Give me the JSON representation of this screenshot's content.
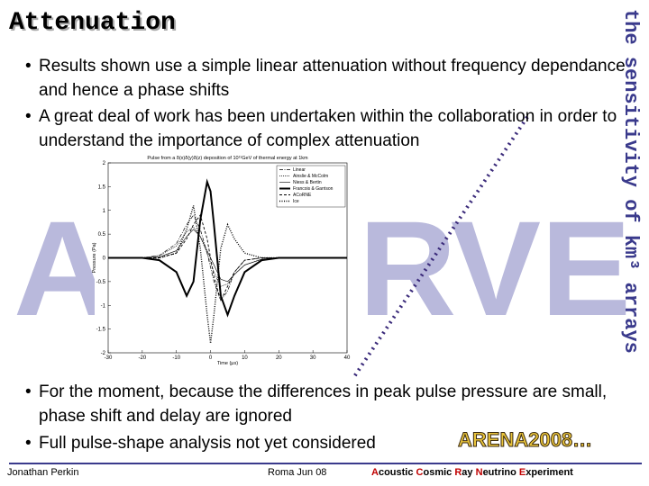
{
  "header": {
    "title": "Attenuation",
    "side_text": "the sensitivity of km³ arrays"
  },
  "watermark": [
    "A",
    "R",
    "V",
    "E"
  ],
  "bullets_top": [
    "Results shown use a simple linear attenuation without frequency dependance and hence a phase shifts",
    "A great deal of work has been undertaken within the collaboration in order to understand the importance of complex attenuation"
  ],
  "bullets_bottom": [
    "For the moment, because the differences in peak pulse pressure are small, phase shift and delay are ignored",
    "Full pulse-shape analysis not yet considered"
  ],
  "logo": "ARENA2008…",
  "footer": {
    "author": "Jonathan Perkin",
    "venue": "Roma Jun 08",
    "experiment": [
      {
        "initial": "A",
        "rest": "coustic"
      },
      {
        "initial": "C",
        "rest": "osmic"
      },
      {
        "initial": "R",
        "rest": "ay"
      },
      {
        "initial": "N",
        "rest": "eutrino"
      },
      {
        "initial": "E",
        "rest": "xperiment"
      }
    ]
  },
  "chart_data": {
    "type": "line",
    "title": "Pulse from a δ(x)δ(y)δ(z) deposition of 10¹¹GeV of thermal energy at 1km",
    "x_label": "Time (μs)",
    "y_label": "Pressure (Pa)",
    "x": [
      -30,
      -20,
      -15,
      -10,
      -7,
      -5,
      -3,
      -1,
      0,
      1,
      3,
      5,
      7,
      10,
      15,
      20,
      30,
      40
    ],
    "series": [
      {
        "name": "Linear",
        "color": "#000000",
        "values": [
          0,
          0,
          0.05,
          0.3,
          0.7,
          0.9,
          0.6,
          0.1,
          -0.2,
          -0.5,
          -0.9,
          -0.7,
          -0.3,
          -0.05,
          0,
          0,
          0,
          0
        ]
      },
      {
        "name": "Ainslie & McColm",
        "color": "#000000",
        "values": [
          0,
          0,
          0.05,
          0.25,
          0.55,
          0.65,
          0.45,
          0.1,
          -0.1,
          -0.3,
          -0.6,
          -0.55,
          -0.35,
          -0.15,
          -0.03,
          0,
          0,
          0
        ]
      },
      {
        "name": "Niess & Bertin",
        "color": "#000000",
        "values": [
          0,
          0,
          0.02,
          0.15,
          0.45,
          0.6,
          0.45,
          0.15,
          0,
          -0.15,
          -0.45,
          -0.5,
          -0.35,
          -0.15,
          -0.03,
          0,
          0,
          0
        ]
      },
      {
        "name": "Francois & Garrison",
        "color": "#000000",
        "values": [
          0,
          0,
          -0.05,
          -0.3,
          -0.8,
          -0.5,
          0.8,
          1.6,
          1.4,
          0.7,
          -0.8,
          -1.2,
          -0.8,
          -0.3,
          -0.05,
          0,
          0,
          0
        ]
      },
      {
        "name": "ACoRNE",
        "color": "#000000",
        "values": [
          0,
          0,
          0,
          0.1,
          0.4,
          0.7,
          0.9,
          0.4,
          0,
          -0.4,
          -0.9,
          -0.6,
          -0.3,
          -0.05,
          0,
          0,
          0,
          0
        ]
      },
      {
        "name": "Ice",
        "color": "#000000",
        "values": [
          0,
          0,
          0,
          0.1,
          0.6,
          1.1,
          0.2,
          -1.2,
          -1.8,
          -1.2,
          0.2,
          0.7,
          0.4,
          0.1,
          0,
          0,
          0,
          0
        ]
      }
    ],
    "xlim": [
      -30,
      40
    ],
    "xticks": [
      -30,
      -20,
      -10,
      0,
      10,
      20,
      30,
      40
    ],
    "ylim": [
      -2,
      2
    ],
    "yticks": [
      -2,
      -1.5,
      -1,
      -0.5,
      0,
      0.5,
      1,
      1.5,
      2
    ],
    "legend": "upper right"
  }
}
